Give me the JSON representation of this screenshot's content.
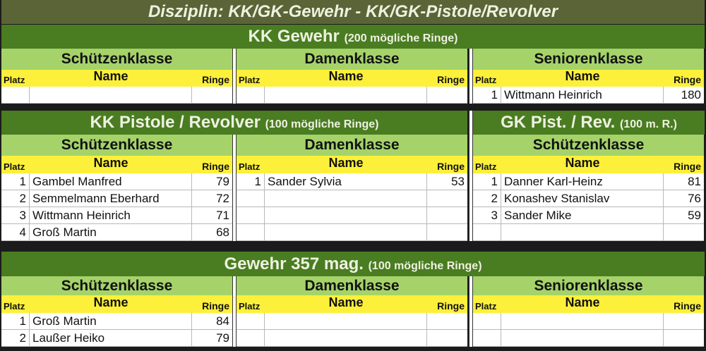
{
  "title": "Disziplin: KK/GK-Gewehr - KK/GK-Pistole/Revolver",
  "columns": {
    "platz": "Platz",
    "name": "Name",
    "ringe": "Ringe"
  },
  "sections": [
    {
      "headers": [
        {
          "main": "KK Gewehr",
          "sub": "(200 mögliche Ringe)",
          "span": "all"
        }
      ],
      "panels": [
        {
          "klass": "Schützenklasse",
          "rows": [
            [
              "",
              "",
              ""
            ]
          ]
        },
        {
          "klass": "Damenklasse",
          "rows": [
            [
              "",
              "",
              ""
            ]
          ]
        },
        {
          "klass": "Seniorenklasse",
          "rows": [
            [
              "1",
              "Wittmann Heinrich",
              "180"
            ]
          ]
        }
      ]
    },
    {
      "headers": [
        {
          "main": "KK Pistole / Revolver",
          "sub": "(100 mögliche Ringe)",
          "span": "left-two"
        },
        {
          "main": "GK Pist. / Rev.",
          "sub": "(100 m. R.)",
          "span": "right"
        }
      ],
      "panels": [
        {
          "klass": "Schützenklasse",
          "rows": [
            [
              "1",
              "Gambel Manfred",
              "79"
            ],
            [
              "2",
              "Semmelmann Eberhard",
              "72"
            ],
            [
              "3",
              "Wittmann Heinrich",
              "71"
            ],
            [
              "4",
              "Groß Martin",
              "68"
            ]
          ]
        },
        {
          "klass": "Damenklasse",
          "rows": [
            [
              "1",
              "Sander Sylvia",
              "53"
            ],
            [
              "",
              "",
              ""
            ],
            [
              "",
              "",
              ""
            ],
            [
              "",
              "",
              ""
            ]
          ]
        },
        {
          "klass": "Schützenklasse",
          "rows": [
            [
              "1",
              "Danner Karl-Heinz",
              "81"
            ],
            [
              "2",
              "Konashev Stanislav",
              "76"
            ],
            [
              "3",
              "Sander Mike",
              "59"
            ],
            [
              "",
              "",
              ""
            ]
          ]
        }
      ]
    },
    {
      "headers": [
        {
          "main": "Gewehr 357 mag.",
          "sub": "(100 mögliche Ringe)",
          "span": "all"
        }
      ],
      "panels": [
        {
          "klass": "Schützenklasse",
          "rows": [
            [
              "1",
              "Groß Martin",
              "84"
            ],
            [
              "2",
              "Laußer Heiko",
              "79"
            ]
          ]
        },
        {
          "klass": "Damenklasse",
          "rows": [
            [
              "",
              "",
              ""
            ],
            [
              "",
              "",
              ""
            ]
          ]
        },
        {
          "klass": "Seniorenklasse",
          "rows": [
            [
              "",
              "",
              ""
            ],
            [
              "",
              "",
              ""
            ]
          ]
        }
      ]
    }
  ]
}
